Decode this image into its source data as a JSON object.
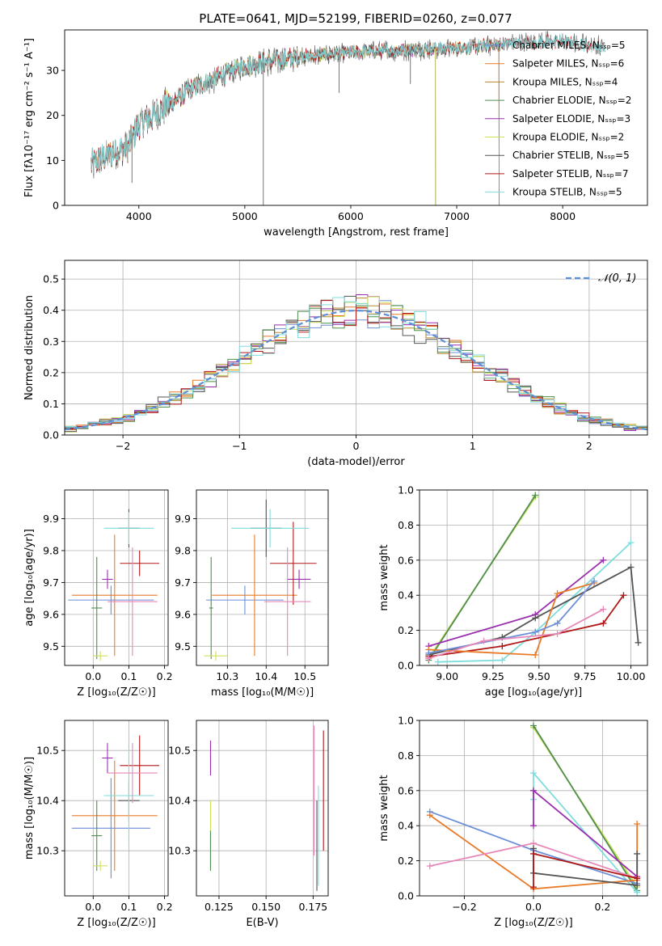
{
  "figure": {
    "title": "PLATE=0641, MJD=52199, FIBERID=0260, z=0.077",
    "colors": {
      "Chabrier MILES": "#6d8fd8",
      "Salpeter MILES": "#e87a28",
      "Kroupa MILES": "#b58a2c",
      "Chabrier ELODIE": "#4f8f4f",
      "Salpeter ELODIE": "#9b2fb0",
      "Kroupa ELODIE": "#cfe05a",
      "Chabrier STELIB": "#555555",
      "Salpeter STELIB": "#b01818",
      "Kroupa STELIB": "#7fdcdc",
      "pink": "#e888b8"
    }
  },
  "chart_data": [
    {
      "id": "spectrum",
      "type": "line",
      "title": "PLATE=0641, MJD=52199, FIBERID=0260, z=0.077",
      "xlabel": "wavelength [Angstrom, rest frame]",
      "ylabel": "Flux [fλ10⁻¹⁷ erg cm⁻² s⁻¹ A⁻¹]",
      "xlim": [
        3300,
        8800
      ],
      "ylim": [
        0,
        39
      ],
      "xticks": [
        4000,
        5000,
        6000,
        7000,
        8000
      ],
      "yticks": [
        0,
        10,
        20,
        30
      ],
      "grid": false,
      "legend_position": "top-right",
      "series": [
        {
          "name": "Chabrier MILES, Nₛₛₚ=5",
          "color": "#6d8fd8",
          "xrange": [
            3550,
            7400
          ]
        },
        {
          "name": "Salpeter MILES, Nₛₛₚ=6",
          "color": "#e87a28",
          "xrange": [
            3550,
            7400
          ]
        },
        {
          "name": "Kroupa MILES, Nₛₛₚ=4",
          "color": "#b58a2c",
          "xrange": [
            3550,
            7400
          ]
        },
        {
          "name": "Chabrier ELODIE, Nₛₛₚ=2",
          "color": "#4f8f4f",
          "xrange": [
            3900,
            6800
          ]
        },
        {
          "name": "Salpeter ELODIE, Nₛₛₚ=3",
          "color": "#9b2fb0",
          "xrange": [
            3900,
            6800
          ]
        },
        {
          "name": "Kroupa ELODIE, Nₛₛₚ=2",
          "color": "#cfe05a",
          "xrange": [
            3900,
            6800
          ]
        },
        {
          "name": "Chabrier STELIB, Nₛₛₚ=5",
          "color": "#555555",
          "xrange": [
            3550,
            8400
          ]
        },
        {
          "name": "Salpeter STELIB, Nₛₛₚ=7",
          "color": "#b01818",
          "xrange": [
            3550,
            8400
          ]
        },
        {
          "name": "Kroupa STELIB, Nₛₛₚ=5",
          "color": "#7fdcdc",
          "xrange": [
            3550,
            8400
          ]
        }
      ],
      "continuum": [
        [
          3550,
          9
        ],
        [
          3700,
          11
        ],
        [
          3900,
          13
        ],
        [
          4000,
          18
        ],
        [
          4200,
          21
        ],
        [
          4500,
          26
        ],
        [
          4800,
          29
        ],
        [
          5000,
          31
        ],
        [
          5500,
          33
        ],
        [
          6000,
          34
        ],
        [
          6500,
          34.5
        ],
        [
          7000,
          35
        ],
        [
          7500,
          36
        ],
        [
          8000,
          36.5
        ],
        [
          8400,
          35
        ]
      ]
    },
    {
      "id": "residuals",
      "type": "line",
      "xlabel": "(data-model)/error",
      "ylabel": "Normed distribution",
      "xlim": [
        -2.5,
        2.5
      ],
      "ylim": [
        0,
        0.56
      ],
      "xticks": [
        -2,
        -1,
        0,
        1,
        2
      ],
      "yticks": [
        0.0,
        0.1,
        0.2,
        0.3,
        0.4,
        0.5
      ],
      "grid": true,
      "legend_position": "top-right",
      "reference_curve": {
        "name": "𝒩(0, 1)",
        "color": "#5b8fd6",
        "style": "dashed"
      },
      "histogram_bin_width": 0.1
    },
    {
      "id": "age_vs_Z",
      "type": "scatter",
      "xlabel": "Z [log₁₀(Z/Z☉)]",
      "ylabel": "age  [log₁₀(age/yr)]",
      "xlim": [
        -0.08,
        0.21
      ],
      "ylim": [
        9.44,
        9.99
      ],
      "xticks": [
        0.0,
        0.1,
        0.2
      ],
      "yticks": [
        9.5,
        9.6,
        9.7,
        9.8,
        9.9
      ],
      "grid": true,
      "errorbars": [
        {
          "color": "#6d8fd8",
          "x": 0.05,
          "xerr": 0.12,
          "y": 9.645,
          "yerr": 0.045
        },
        {
          "color": "#e87a28",
          "x": 0.06,
          "xerr": 0.12,
          "y": 9.66,
          "yerr": 0.19
        },
        {
          "color": "#4f8f4f",
          "x": 0.01,
          "xerr": 0.015,
          "y": 9.62,
          "yerr": 0.16
        },
        {
          "color": "#cfe05a",
          "x": 0.02,
          "xerr": 0.02,
          "y": 9.47,
          "yerr": 0.015
        },
        {
          "color": "#9b2fb0",
          "x": 0.04,
          "xerr": 0.015,
          "y": 9.71,
          "yerr": 0.03
        },
        {
          "color": "#555555",
          "x": 0.1,
          "xerr": 0.03,
          "y": 9.87,
          "yerr": 0.06
        },
        {
          "color": "#b01818",
          "x": 0.13,
          "xerr": 0.055,
          "y": 9.76,
          "yerr": 0.04
        },
        {
          "color": "#7fdcdc",
          "x": 0.1,
          "xerr": 0.07,
          "y": 9.87,
          "yerr": 0.05
        },
        {
          "color": "#e888b8",
          "x": 0.11,
          "xerr": 0.07,
          "y": 9.64,
          "yerr": 0.17
        }
      ]
    },
    {
      "id": "age_vs_mass",
      "type": "scatter",
      "xlabel": "mass [log₁₀(M/M☉)]",
      "ylabel": "",
      "xlim": [
        10.22,
        10.56
      ],
      "ylim": [
        9.44,
        9.99
      ],
      "xticks": [
        10.3,
        10.4,
        10.5
      ],
      "yticks": [
        9.5,
        9.6,
        9.7,
        9.8,
        9.9
      ],
      "grid": true,
      "errorbars": [
        {
          "color": "#6d8fd8",
          "x": 10.345,
          "xerr": 0.1,
          "y": 9.645,
          "yerr": 0.045
        },
        {
          "color": "#e87a28",
          "x": 10.37,
          "xerr": 0.11,
          "y": 9.66,
          "yerr": 0.19
        },
        {
          "color": "#4f8f4f",
          "x": 10.258,
          "xerr": 0.005,
          "y": 9.62,
          "yerr": 0.16
        },
        {
          "color": "#cfe05a",
          "x": 10.27,
          "xerr": 0.03,
          "y": 9.47,
          "yerr": 0.015
        },
        {
          "color": "#9b2fb0",
          "x": 10.485,
          "xerr": 0.03,
          "y": 9.71,
          "yerr": 0.03
        },
        {
          "color": "#555555",
          "x": 10.4,
          "xerr": 0.04,
          "y": 9.87,
          "yerr": 0.09
        },
        {
          "color": "#b01818",
          "x": 10.47,
          "xerr": 0.06,
          "y": 9.76,
          "yerr": 0.13
        },
        {
          "color": "#7fdcdc",
          "x": 10.41,
          "xerr": 0.1,
          "y": 9.87,
          "yerr": 0.06
        },
        {
          "color": "#e888b8",
          "x": 10.455,
          "xerr": 0.06,
          "y": 9.64,
          "yerr": 0.17
        }
      ]
    },
    {
      "id": "weight_vs_age",
      "type": "line",
      "xlabel": "age  [log₁₀(age/yr)]",
      "ylabel": "mass weight",
      "xlim": [
        8.85,
        10.09
      ],
      "ylim": [
        0,
        1.0
      ],
      "xticks": [
        9.0,
        9.25,
        9.5,
        9.75,
        10.0
      ],
      "xtick_labels": [
        "9.00",
        "9.25",
        "9.50",
        "9.75",
        "10.00"
      ],
      "yticks": [
        0.0,
        0.2,
        0.4,
        0.6,
        0.8,
        1.0
      ],
      "grid": true,
      "series": [
        {
          "color": "#cfe05a",
          "x": [
            8.9,
            9.48
          ],
          "y": [
            0.04,
            0.96
          ]
        },
        {
          "color": "#4f8f4f",
          "x": [
            8.9,
            9.48
          ],
          "y": [
            0.03,
            0.97
          ]
        },
        {
          "color": "#9b2fb0",
          "x": [
            8.9,
            9.48,
            9.85
          ],
          "y": [
            0.11,
            0.29,
            0.6
          ]
        },
        {
          "color": "#7fdcdc",
          "x": [
            8.95,
            9.3,
            9.48,
            10.0
          ],
          "y": [
            0.02,
            0.03,
            0.19,
            0.7
          ]
        },
        {
          "color": "#555555",
          "x": [
            8.9,
            9.3,
            9.48,
            10.0,
            10.04
          ],
          "y": [
            0.06,
            0.16,
            0.27,
            0.56,
            0.13
          ]
        },
        {
          "color": "#b01818",
          "x": [
            8.9,
            9.3,
            9.85,
            9.96
          ],
          "y": [
            0.05,
            0.11,
            0.24,
            0.4
          ]
        },
        {
          "color": "#e87a28",
          "x": [
            8.9,
            9.48,
            9.6,
            9.8
          ],
          "y": [
            0.09,
            0.06,
            0.41,
            0.47
          ]
        },
        {
          "color": "#6d8fd8",
          "x": [
            8.9,
            9.48,
            9.6,
            9.8
          ],
          "y": [
            0.07,
            0.19,
            0.24,
            0.48
          ]
        },
        {
          "color": "#e888b8",
          "x": [
            8.9,
            9.2,
            9.6,
            9.85
          ],
          "y": [
            0.04,
            0.14,
            0.18,
            0.32
          ]
        }
      ]
    },
    {
      "id": "mass_vs_Z",
      "type": "scatter",
      "xlabel": "Z [log₁₀(Z/Z☉)]",
      "ylabel": "mass [log₁₀(M/M☉)]",
      "xlim": [
        -0.08,
        0.21
      ],
      "ylim": [
        10.21,
        10.56
      ],
      "xticks": [
        0.0,
        0.1,
        0.2
      ],
      "yticks": [
        10.3,
        10.4,
        10.5
      ],
      "grid": true,
      "errorbars": [
        {
          "color": "#6d8fd8",
          "x": 0.05,
          "xerr": 0.11,
          "y": 10.345,
          "yerr": 0.1
        },
        {
          "color": "#e87a28",
          "x": 0.06,
          "xerr": 0.12,
          "y": 10.37,
          "yerr": 0.11
        },
        {
          "color": "#4f8f4f",
          "x": 0.01,
          "xerr": 0.015,
          "y": 10.33,
          "yerr": 0.07
        },
        {
          "color": "#cfe05a",
          "x": 0.02,
          "xerr": 0.02,
          "y": 10.27,
          "yerr": 0.01
        },
        {
          "color": "#9b2fb0",
          "x": 0.04,
          "xerr": 0.015,
          "y": 10.485,
          "yerr": 0.03
        },
        {
          "color": "#555555",
          "x": 0.1,
          "xerr": 0.03,
          "y": 10.4,
          "yerr": 0.04
        },
        {
          "color": "#b01818",
          "x": 0.13,
          "xerr": 0.055,
          "y": 10.47,
          "yerr": 0.06
        },
        {
          "color": "#7fdcdc",
          "x": 0.1,
          "xerr": 0.07,
          "y": 10.41,
          "yerr": 0.1
        },
        {
          "color": "#e888b8",
          "x": 0.11,
          "xerr": 0.07,
          "y": 10.455,
          "yerr": 0.06
        }
      ]
    },
    {
      "id": "mass_vs_ebv",
      "type": "scatter",
      "xlabel": "E(B-V)",
      "ylabel": "",
      "xlim": [
        0.113,
        0.183
      ],
      "ylim": [
        10.21,
        10.56
      ],
      "xticks": [
        0.125,
        0.15,
        0.175
      ],
      "yticks": [
        10.3,
        10.4,
        10.5
      ],
      "grid": true,
      "errorbars": [
        {
          "color": "#9b2fb0",
          "x": 0.1205,
          "xerr": 0,
          "y": 10.485,
          "yerr": 0.035
        },
        {
          "color": "#cfe05a",
          "x": 0.1205,
          "xerr": 0,
          "y": 10.33,
          "yerr": 0.07
        },
        {
          "color": "#4f8f4f",
          "x": 0.1205,
          "xerr": 0,
          "y": 10.3,
          "yerr": 0.04
        },
        {
          "color": "#e888b8",
          "x": 0.1755,
          "xerr": 0,
          "y": 10.42,
          "yerr": 0.13
        },
        {
          "color": "#555555",
          "x": 0.177,
          "xerr": 0,
          "y": 10.31,
          "yerr": 0.09
        },
        {
          "color": "#7fdcdc",
          "x": 0.1778,
          "xerr": 0,
          "y": 10.33,
          "yerr": 0.1
        },
        {
          "color": "#b01818",
          "x": 0.1805,
          "xerr": 0,
          "y": 10.42,
          "yerr": 0.12
        }
      ]
    },
    {
      "id": "weight_vs_Z",
      "type": "line",
      "xlabel": "Z [log₁₀(Z/Z☉)]",
      "ylabel": "mass weight",
      "xlim": [
        -0.33,
        0.33
      ],
      "ylim": [
        0,
        1.0
      ],
      "xticks": [
        -0.2,
        0.0,
        0.2
      ],
      "yticks": [
        0.0,
        0.2,
        0.4,
        0.6,
        0.8,
        1.0
      ],
      "grid": true,
      "series": [
        {
          "color": "#cfe05a",
          "x": [
            0.0,
            0.3
          ],
          "y": [
            0.96,
            0.05
          ]
        },
        {
          "color": "#4f8f4f",
          "x": [
            0.0,
            0.3
          ],
          "y": [
            0.97,
            0.03
          ]
        },
        {
          "color": "#7fdcdc",
          "x": [
            0.0,
            0.0,
            0.3
          ],
          "y": [
            0.55,
            0.7,
            0.02
          ]
        },
        {
          "color": "#9b2fb0",
          "x": [
            0.0,
            0.0,
            0.3
          ],
          "y": [
            0.4,
            0.6,
            0.11
          ]
        },
        {
          "color": "#6d8fd8",
          "x": [
            -0.3,
            0.0,
            0.3
          ],
          "y": [
            0.48,
            0.26,
            0.07
          ]
        },
        {
          "color": "#e87a28",
          "x": [
            -0.3,
            0.0,
            0.3,
            0.3
          ],
          "y": [
            0.46,
            0.04,
            0.09,
            0.41
          ]
        },
        {
          "color": "#e888b8",
          "x": [
            -0.3,
            0.0,
            0.3
          ],
          "y": [
            0.17,
            0.3,
            0.1
          ]
        },
        {
          "color": "#555555",
          "x": [
            0.0,
            0.0,
            0.3,
            0.3
          ],
          "y": [
            0.27,
            0.13,
            0.06,
            0.24
          ]
        },
        {
          "color": "#b01818",
          "x": [
            0.0,
            0.0,
            0.3
          ],
          "y": [
            0.05,
            0.24,
            0.1
          ]
        }
      ]
    }
  ]
}
